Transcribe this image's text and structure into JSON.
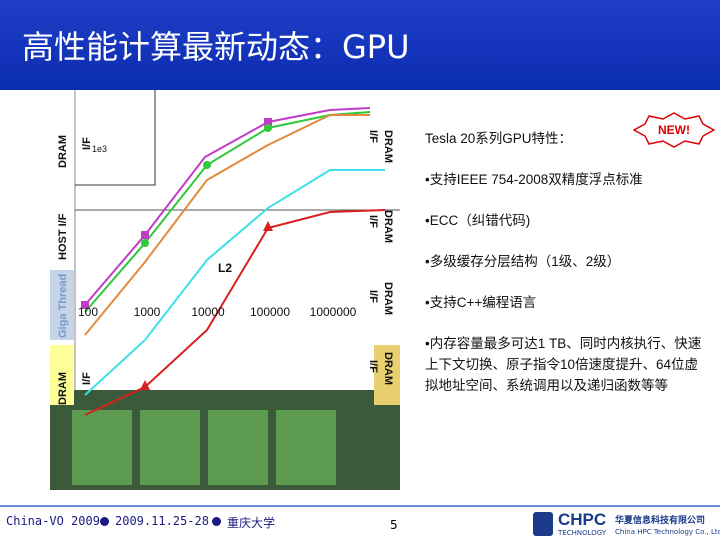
{
  "header": {
    "title": "高性能计算最新动态：GPU"
  },
  "figure": {
    "labels": {
      "dram_left_top": "DRAM",
      "if_left_top": "I/F",
      "host": "HOST I/F",
      "giga": "Giga Thread",
      "dram_left_bottom": "DRAM",
      "if_left_bottom": "I/F",
      "l2": "L2",
      "dram_r1": "DRAM",
      "if_r1": "I/F",
      "dram_r2": "DRAM",
      "if_r2": "I/F",
      "dram_r3": "DRAM",
      "if_r3": "I/F",
      "dram_r4": "DRAM",
      "if_r4": "I/F",
      "small": "1e3"
    },
    "x_labels": [
      "100",
      "1000",
      "10000",
      "100000",
      "1000000"
    ]
  },
  "features": {
    "heading": "Tesla 20系列GPU特性：",
    "badge": "NEW!",
    "bullets": [
      "•支持IEEE 754-2008双精度浮点标准",
      "•ECC（纠错代码)",
      "•多级缓存分层结构（1级、2级）",
      "•支持C++编程语言",
      "•内存容量最多可达1 TB、同时内核执行、快速上下文切换、原子指令10倍速度提升、64位虚拟地址空间、系统调用以及递归函数等等"
    ]
  },
  "footer": {
    "event": "China-VO 2009",
    "dates": "2009.11.25-28",
    "venue": "重庆大学",
    "page": "5",
    "logo": "CHPC",
    "logo_sub": "TECHNOLOGY",
    "company_cn": "华夏信息科技有限公司",
    "company_en": "China HPC Technology Co., Ltd."
  }
}
